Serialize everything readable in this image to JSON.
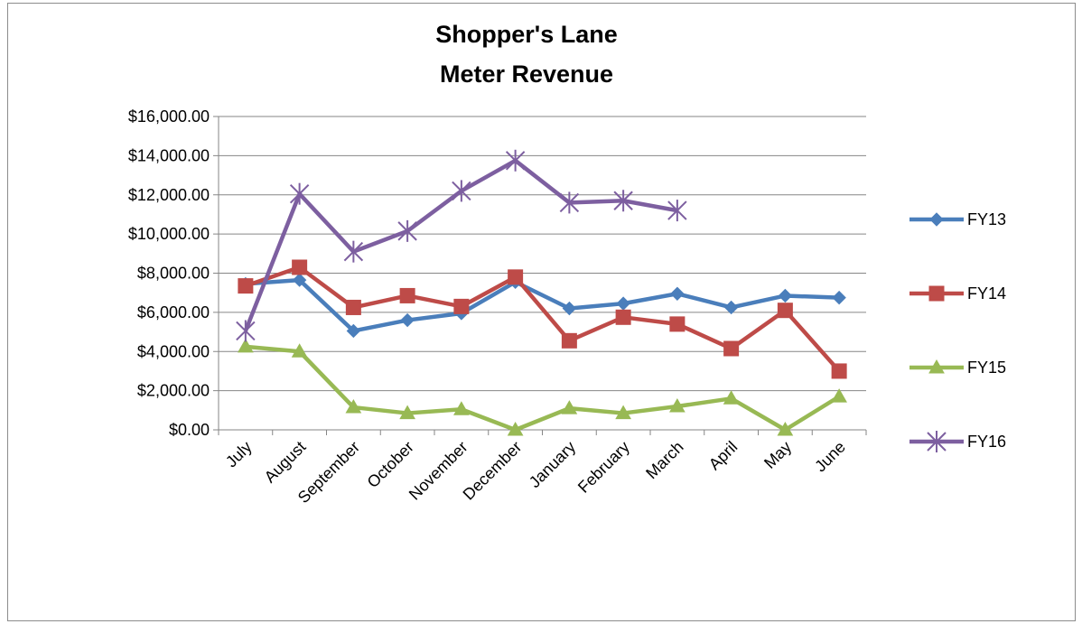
{
  "chart_data": {
    "type": "line",
    "title": "Shopper's Lane",
    "subtitle": "Meter Revenue",
    "xlabel": "",
    "ylabel": "",
    "categories": [
      "July",
      "August",
      "September",
      "October",
      "November",
      "December",
      "January",
      "February",
      "March",
      "April",
      "May",
      "June"
    ],
    "ylim": [
      0,
      16000
    ],
    "yticks": [
      0,
      2000,
      4000,
      6000,
      8000,
      10000,
      12000,
      14000,
      16000
    ],
    "ytick_labels": [
      "$0.00",
      "$2,000.00",
      "$4,000.00",
      "$6,000.00",
      "$8,000.00",
      "$10,000.00",
      "$12,000.00",
      "$14,000.00",
      "$16,000.00"
    ],
    "grid": "horizontal",
    "legend_position": "right",
    "series": [
      {
        "name": "FY13",
        "color": "#4a7ebb",
        "marker": "diamond",
        "values": [
          7450,
          7650,
          5050,
          5600,
          5950,
          7550,
          6200,
          6450,
          6950,
          6250,
          6850,
          6750
        ]
      },
      {
        "name": "FY14",
        "color": "#be4b48",
        "marker": "square",
        "values": [
          7350,
          8300,
          6250,
          6850,
          6300,
          7800,
          4550,
          5750,
          5400,
          4150,
          6100,
          3000
        ]
      },
      {
        "name": "FY15",
        "color": "#98b954",
        "marker": "triangle",
        "values": [
          4250,
          4000,
          1150,
          850,
          1050,
          0,
          1100,
          850,
          1200,
          1600,
          0,
          1700
        ]
      },
      {
        "name": "FY16",
        "color": "#7d5fa0",
        "marker": "star",
        "values": [
          5050,
          12050,
          9100,
          10150,
          12200,
          13750,
          11600,
          11700,
          11200,
          null,
          null,
          null
        ]
      }
    ]
  }
}
